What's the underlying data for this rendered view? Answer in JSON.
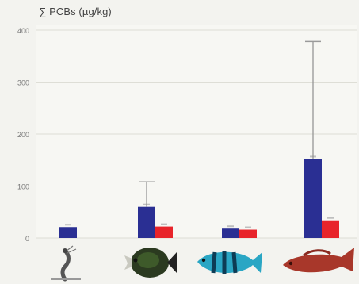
{
  "chart_data": {
    "type": "bar",
    "title": "∑ PCBs (µg/kg)",
    "ylabel": "∑ PCBs (µg/kg)",
    "xlabel": "",
    "ylim": [
      0,
      400
    ],
    "yticks": [
      0,
      100,
      200,
      300,
      400
    ],
    "ytick_labels": [
      "0",
      "100",
      "200",
      "300",
      "400"
    ],
    "grid": true,
    "categories": [
      "shrimp",
      "butterfly-fish",
      "blue-striped-fish",
      "red-fish"
    ],
    "series": [
      {
        "color": "#2a2f93",
        "values": [
          21,
          60,
          18,
          152
        ],
        "error_upper": [
          null,
          108,
          null,
          378
        ]
      },
      {
        "color": "#e8242a",
        "values": [
          null,
          22,
          16,
          34
        ],
        "error_upper": [
          null,
          null,
          null,
          null
        ]
      }
    ],
    "icons": [
      "shrimp-icon",
      "butterfly-fish-icon",
      "blue-striped-fish-icon",
      "red-fish-icon"
    ]
  }
}
